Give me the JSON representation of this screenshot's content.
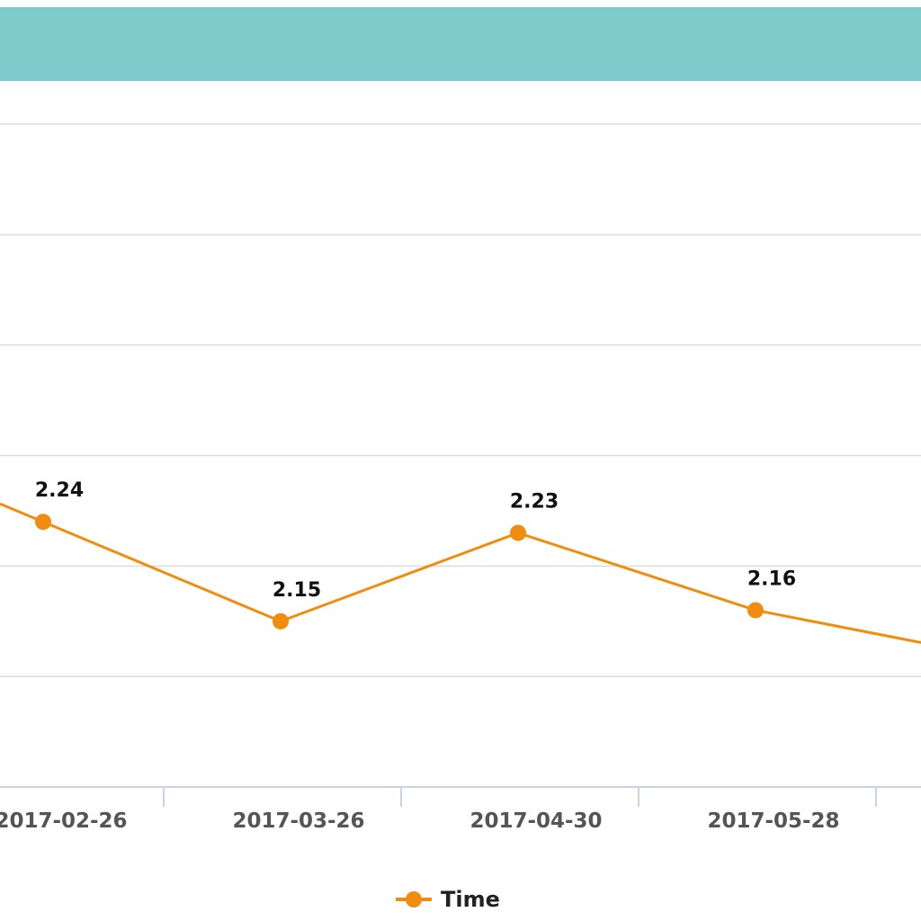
{
  "colors": {
    "header": "#7ecbcb",
    "series": "#f28c0f"
  },
  "chart_data": {
    "type": "line",
    "title": "",
    "xlabel": "",
    "ylabel": "",
    "categories": [
      "2017-02-26",
      "2017-03-26",
      "2017-04-30",
      "2017-05-28"
    ],
    "series": [
      {
        "name": "Time",
        "values": [
          2.24,
          2.15,
          2.23,
          2.16
        ],
        "labels": [
          "2.24",
          "2.15",
          "2.23",
          "2.16"
        ]
      }
    ],
    "ylim": [
      2.0,
      2.6
    ],
    "grid": true,
    "legend": "bottom-center"
  }
}
